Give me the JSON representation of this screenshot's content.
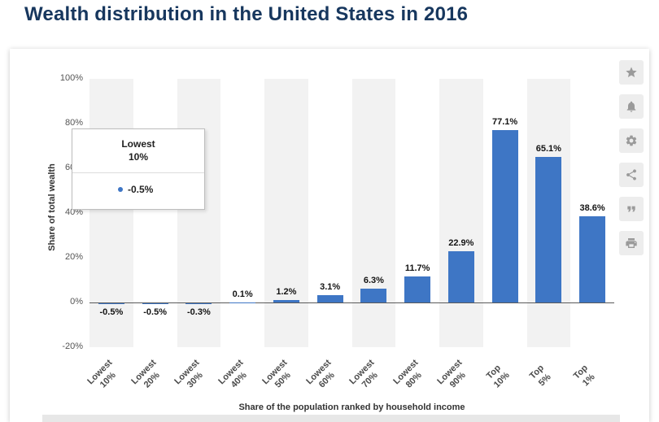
{
  "page": {
    "title": "Wealth distribution in the United States in 2016"
  },
  "toolbar": {
    "buttons": [
      {
        "name": "favorite-button",
        "icon": "star"
      },
      {
        "name": "notifications-button",
        "icon": "bell"
      },
      {
        "name": "settings-button",
        "icon": "gear"
      },
      {
        "name": "share-button",
        "icon": "share"
      },
      {
        "name": "cite-button",
        "icon": "quote"
      },
      {
        "name": "print-button",
        "icon": "printer"
      }
    ]
  },
  "tooltip": {
    "category_line1": "Lowest",
    "category_line2": "10%",
    "value": "-0.5%",
    "marker_color": "#3e76c5"
  },
  "chart_data": {
    "type": "bar",
    "title": "Wealth distribution in the United States in 2016",
    "categories": [
      "Lowest 10%",
      "Lowest 20%",
      "Lowest 30%",
      "Lowest 40%",
      "Lowest 50%",
      "Lowest 60%",
      "Lowest 70%",
      "Lowest 80%",
      "Lowest 90%",
      "Top 10%",
      "Top 5%",
      "Top 1%"
    ],
    "values": [
      -0.5,
      -0.5,
      -0.3,
      0.1,
      1.2,
      3.1,
      6.3,
      11.7,
      22.9,
      77.1,
      65.1,
      38.6
    ],
    "value_labels": [
      "-0.5%",
      "-0.5%",
      "-0.3%",
      "0.1%",
      "1.2%",
      "3.1%",
      "6.3%",
      "11.7%",
      "22.9%",
      "77.1%",
      "65.1%",
      "38.6%"
    ],
    "xlabel": "Share of the population ranked by household income",
    "ylabel": "Share of total wealth",
    "ylim": [
      -20,
      100
    ],
    "ytick_step": 20,
    "ytick_labels": [
      "100%",
      "80%",
      "60%",
      "40%",
      "20%",
      "0%",
      "-20%"
    ],
    "bar_color": "#3e76c5",
    "stripe_color": "#f2f2f2",
    "grid": false,
    "legend": "none"
  }
}
